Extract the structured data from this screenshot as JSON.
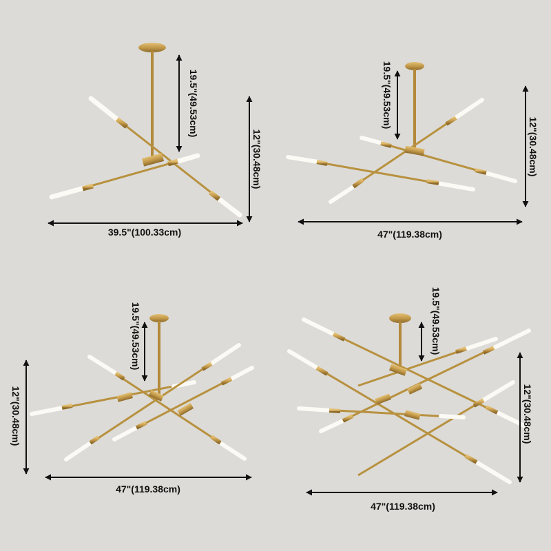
{
  "panels": [
    {
      "id": "3-light",
      "drop_label": "19.5\"(49.53cm)",
      "height_label": "12\"(30.48cm)",
      "width_label": "39.5\"(100.33cm)"
    },
    {
      "id": "4-light",
      "drop_label": "19.5\"(49.53cm)",
      "height_label": "12\"(30.48cm)",
      "width_label": "47\"(119.38cm)"
    },
    {
      "id": "6-light",
      "drop_label": "19.5\"(49.53cm)",
      "height_label": "12\"(30.48cm)",
      "width_label": "47\"(119.38cm)"
    },
    {
      "id": "8-light",
      "drop_label": "19.5\"(49.53cm)",
      "height_label": "12\"(30.48cm)",
      "width_label": "47\"(119.38cm)"
    }
  ],
  "colors": {
    "background": "#dcdbd7",
    "brass": "#c49a4a",
    "bulb": "#f7f5ef",
    "dimension": "#111111"
  }
}
